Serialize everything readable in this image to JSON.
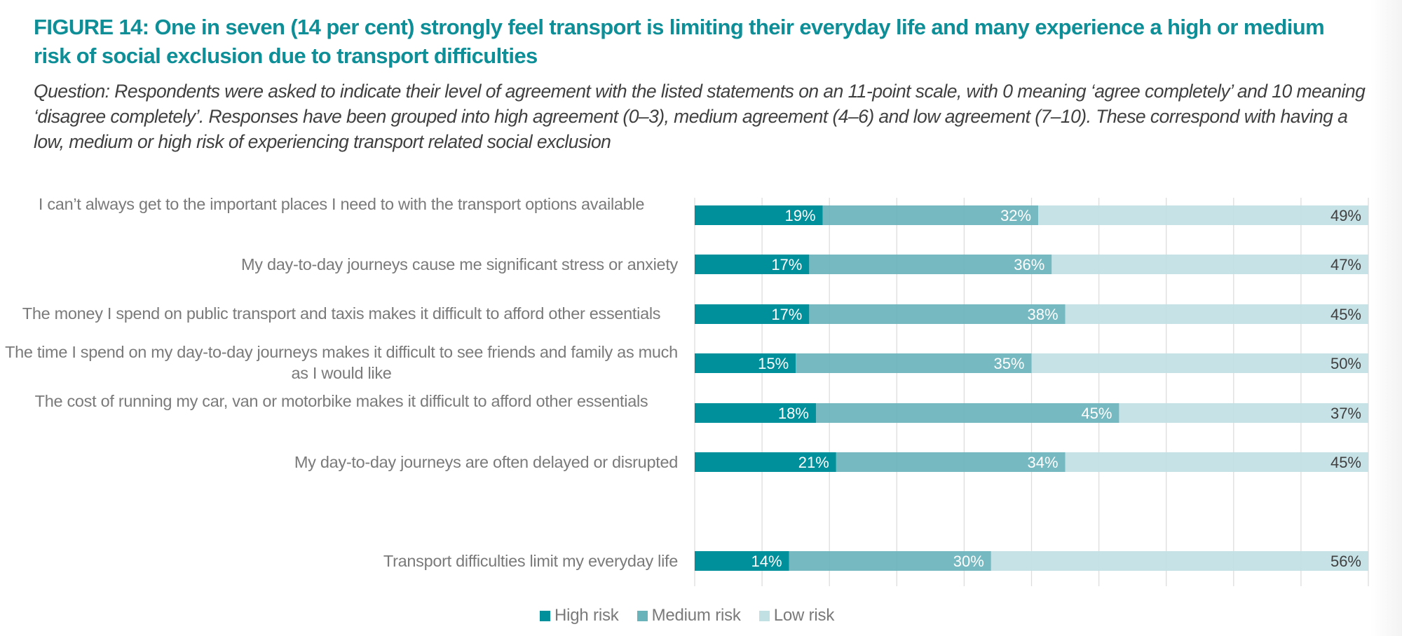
{
  "header": {
    "title": "FIGURE 14: One in seven (14 per cent) strongly feel transport is limiting their everyday life and many experience a high or medium risk of social exclusion due to transport difficulties",
    "question": "Question: Respondents were asked to indicate their level of agreement with the listed statements on an 11-point scale, with 0 meaning ‘agree completely’ and 10 meaning ‘disagree completely’. Responses have been grouped into high agreement (0–3), medium agreement (4–6) and low agreement (7–10). These correspond with having a low, medium or high risk of experiencing transport related social exclusion"
  },
  "colors": {
    "high": "#00909b",
    "medium": "#6ab3bb",
    "low": "#c1e0e4",
    "title": "#0e8f98",
    "gridline": "#dddddd"
  },
  "chart_data": {
    "type": "bar",
    "orientation": "horizontal",
    "stacked": true,
    "normalized_percent": true,
    "title": "FIGURE 14: One in seven (14 per cent) strongly feel transport is limiting their everyday life and many experience a high or medium risk of social exclusion due to transport difficulties",
    "xlabel": "",
    "ylabel": "",
    "xlim": [
      0,
      100
    ],
    "grid": true,
    "legend_position": "bottom",
    "categories": [
      "I can’t always get to the important places I need to with the transport options available",
      "My day-to-day journeys cause me significant stress or anxiety",
      "The money I spend on public transport and taxis makes it difficult to afford other essentials",
      "The time I spend on my day-to-day journeys makes it difficult to see friends and family as much as I would like",
      "The cost of running my car, van or motorbike makes it difficult to afford other essentials",
      "My day-to-day journeys are often delayed or disrupted",
      "Transport difficulties limit my everyday life"
    ],
    "series": [
      {
        "name": "High risk",
        "values": [
          19,
          17,
          17,
          15,
          18,
          21,
          14
        ]
      },
      {
        "name": "Medium risk",
        "values": [
          32,
          36,
          38,
          35,
          45,
          34,
          30
        ]
      },
      {
        "name": "Low risk",
        "values": [
          49,
          47,
          45,
          50,
          37,
          45,
          56
        ]
      }
    ],
    "value_suffix": "%"
  }
}
